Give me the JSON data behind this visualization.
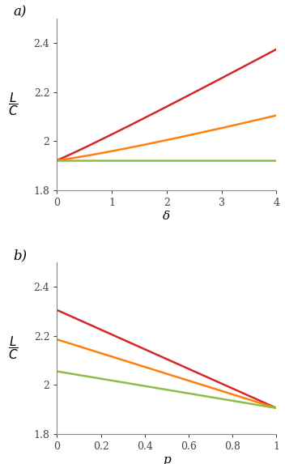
{
  "ylim": [
    1.8,
    2.5
  ],
  "yticks": [
    1.8,
    2.0,
    2.2,
    2.4
  ],
  "ytick_labels": [
    "1.8",
    "2",
    "2.2",
    "2.4"
  ],
  "color_L": "#d62728",
  "color_C": "#ff7f0e",
  "color_B": "#8fbc45",
  "linewidth": 1.8,
  "xlabel_a": "δ",
  "xlabel_b": "p",
  "label_a": "a)",
  "label_b": "b)",
  "background": "#ffffff",
  "plot_a": {
    "xlim": [
      0,
      4
    ],
    "xticks": [
      0,
      1,
      2,
      3,
      4
    ],
    "EL_start": 1.922,
    "EL_end": 2.375,
    "EC_start": 1.922,
    "EC_end": 2.105,
    "EB_val": 1.922
  },
  "plot_b": {
    "xlim": [
      0,
      1
    ],
    "xticks": [
      0,
      0.2,
      0.4,
      0.6,
      0.8,
      1.0
    ],
    "xtick_labels": [
      "0",
      "0.2",
      "0.4",
      "0.6",
      "0.8",
      "1"
    ],
    "EL_start": 2.305,
    "EL_end": 1.905,
    "EC_start": 2.185,
    "EC_end": 1.905,
    "EB_start": 2.055,
    "EB_end": 1.905
  }
}
